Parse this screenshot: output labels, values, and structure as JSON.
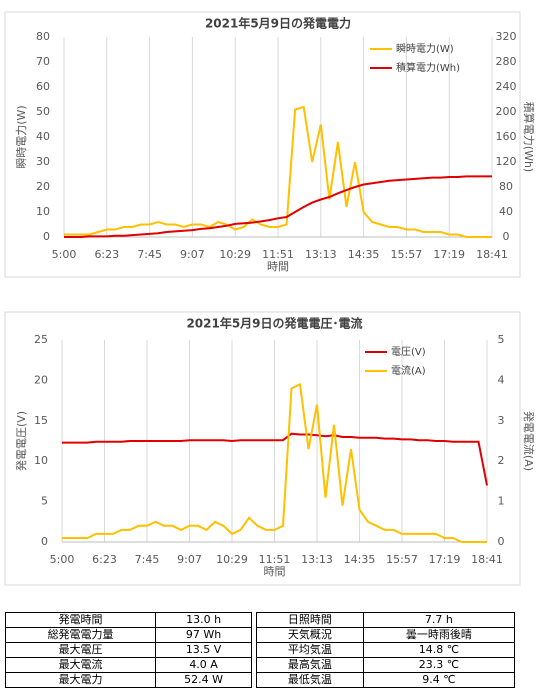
{
  "chart_data": [
    {
      "type": "line",
      "title": "2021年5月9日の発電電力",
      "xlabel": "時間",
      "ylabel": "瞬時電力(W)",
      "y2label": "積算電力(Wh)",
      "categories": [
        "5:00",
        null,
        null,
        null,
        null,
        "6:23",
        null,
        null,
        null,
        null,
        "7:45",
        null,
        null,
        null,
        null,
        "9:07",
        null,
        null,
        null,
        null,
        "10:29",
        null,
        null,
        null,
        null,
        "11:51",
        null,
        null,
        null,
        null,
        "13:13",
        null,
        null,
        null,
        null,
        "14:35",
        null,
        null,
        null,
        null,
        "15:57",
        null,
        null,
        null,
        null,
        "17:19",
        null,
        null,
        null,
        null,
        "18:41"
      ],
      "series": [
        {
          "name": "瞬時電力(W)",
          "color": "#ffc000",
          "values": [
            1,
            1,
            1,
            1,
            2,
            3,
            3,
            4,
            4,
            5,
            5,
            6,
            5,
            5,
            4,
            5,
            5,
            4,
            6,
            5,
            3,
            4,
            7,
            5,
            4,
            4,
            5,
            51,
            52,
            30,
            45,
            15,
            38,
            12,
            30,
            10,
            6,
            5,
            4,
            4,
            3,
            3,
            2,
            2,
            2,
            1,
            1,
            0,
            0,
            0,
            0
          ]
        },
        {
          "name": "積算電力(Wh)",
          "color": "#e00000",
          "axis": "y2",
          "values": [
            0,
            0,
            0,
            1,
            1,
            1,
            2,
            2,
            3,
            4,
            5,
            6,
            8,
            9,
            10,
            11,
            13,
            14,
            16,
            18,
            21,
            22,
            23,
            25,
            27,
            30,
            32,
            40,
            48,
            55,
            60,
            64,
            70,
            75,
            80,
            84,
            86,
            88,
            90,
            91,
            92,
            93,
            94,
            95,
            95,
            96,
            96,
            97,
            97,
            97,
            97
          ]
        }
      ],
      "ylim": [
        0,
        80
      ],
      "yticks": [
        0,
        10,
        20,
        30,
        40,
        50,
        60,
        70,
        80
      ],
      "y2lim": [
        0,
        320
      ],
      "y2ticks": [
        0,
        40,
        80,
        120,
        160,
        200,
        240,
        280,
        320
      ],
      "grid": true,
      "legend": "top-right"
    },
    {
      "type": "line",
      "title": "2021年5月9日の発電電圧･電流",
      "xlabel": "時間",
      "ylabel": "発電電圧(V)",
      "y2label": "発電電流(A)",
      "categories": [
        "5:00",
        null,
        null,
        null,
        null,
        "6:23",
        null,
        null,
        null,
        null,
        "7:45",
        null,
        null,
        null,
        null,
        "9:07",
        null,
        null,
        null,
        null,
        "10:29",
        null,
        null,
        null,
        null,
        "11:51",
        null,
        null,
        null,
        null,
        "13:13",
        null,
        null,
        null,
        null,
        "14:35",
        null,
        null,
        null,
        null,
        "15:57",
        null,
        null,
        null,
        null,
        "17:19",
        null,
        null,
        null,
        null,
        "18:41"
      ],
      "series": [
        {
          "name": "電圧(V)",
          "color": "#e00000",
          "values": [
            12.3,
            12.3,
            12.3,
            12.3,
            12.4,
            12.4,
            12.4,
            12.4,
            12.5,
            12.5,
            12.5,
            12.5,
            12.5,
            12.5,
            12.5,
            12.6,
            12.6,
            12.6,
            12.6,
            12.6,
            12.5,
            12.6,
            12.6,
            12.6,
            12.6,
            12.6,
            12.6,
            13.4,
            13.3,
            13.3,
            13.2,
            13.1,
            13.2,
            13.0,
            13.0,
            12.9,
            12.9,
            12.9,
            12.8,
            12.8,
            12.7,
            12.7,
            12.6,
            12.6,
            12.5,
            12.5,
            12.4,
            12.4,
            12.4,
            12.4,
            7.0
          ]
        },
        {
          "name": "電流(A)",
          "color": "#ffc000",
          "axis": "y2",
          "values": [
            0.1,
            0.1,
            0.1,
            0.1,
            0.2,
            0.2,
            0.2,
            0.3,
            0.3,
            0.4,
            0.4,
            0.5,
            0.4,
            0.4,
            0.3,
            0.4,
            0.4,
            0.3,
            0.5,
            0.4,
            0.2,
            0.3,
            0.6,
            0.4,
            0.3,
            0.3,
            0.4,
            3.8,
            3.9,
            2.3,
            3.4,
            1.1,
            2.9,
            0.9,
            2.3,
            0.8,
            0.5,
            0.4,
            0.3,
            0.3,
            0.2,
            0.2,
            0.2,
            0.2,
            0.2,
            0.1,
            0.1,
            0.0,
            0.0,
            0.0,
            0.0
          ]
        }
      ],
      "ylim": [
        0,
        25
      ],
      "yticks": [
        0,
        5,
        10,
        15,
        20,
        25
      ],
      "y2lim": [
        0,
        5
      ],
      "y2ticks": [
        0,
        1,
        2,
        3,
        4,
        5
      ],
      "grid": true,
      "legend": "top-right"
    }
  ],
  "table": {
    "rows": [
      [
        "発電時間",
        "13.0 h",
        "日照時間",
        "7.7 h"
      ],
      [
        "総発電電力量",
        "97 Wh",
        "天気概況",
        "曇一時雨後晴"
      ],
      [
        "最大電圧",
        "13.5 V",
        "平均気温",
        "14.8 ℃"
      ],
      [
        "最大電流",
        "4.0 A",
        "最高気温",
        "23.3 ℃"
      ],
      [
        "最大電力",
        "52.4 W",
        "最低気温",
        "9.4 ℃"
      ]
    ]
  }
}
